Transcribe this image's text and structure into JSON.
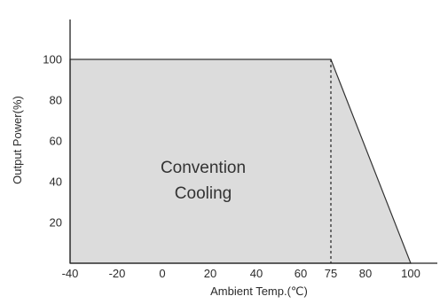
{
  "chart_data": {
    "type": "area",
    "title": "",
    "xlabel": "Ambient Temp.(℃)",
    "ylabel": "Output Power(%)",
    "x_ticks": [
      "-40",
      "-20",
      "0",
      "20",
      "40",
      "60",
      "75",
      "80",
      "100"
    ],
    "y_ticks": [
      "20",
      "40",
      "60",
      "80",
      "100"
    ],
    "xlim": [
      -40,
      100
    ],
    "ylim": [
      0,
      120
    ],
    "series": [
      {
        "points": [
          {
            "x": -40,
            "y": 100
          },
          {
            "x": 75,
            "y": 100
          },
          {
            "x": 100,
            "y": 0
          }
        ]
      }
    ],
    "marker_line_x": 75,
    "region_label": [
      "Convention",
      "Cooling"
    ],
    "fill_color": "#dcdcdc",
    "line_color": "#333333",
    "grid": false
  }
}
